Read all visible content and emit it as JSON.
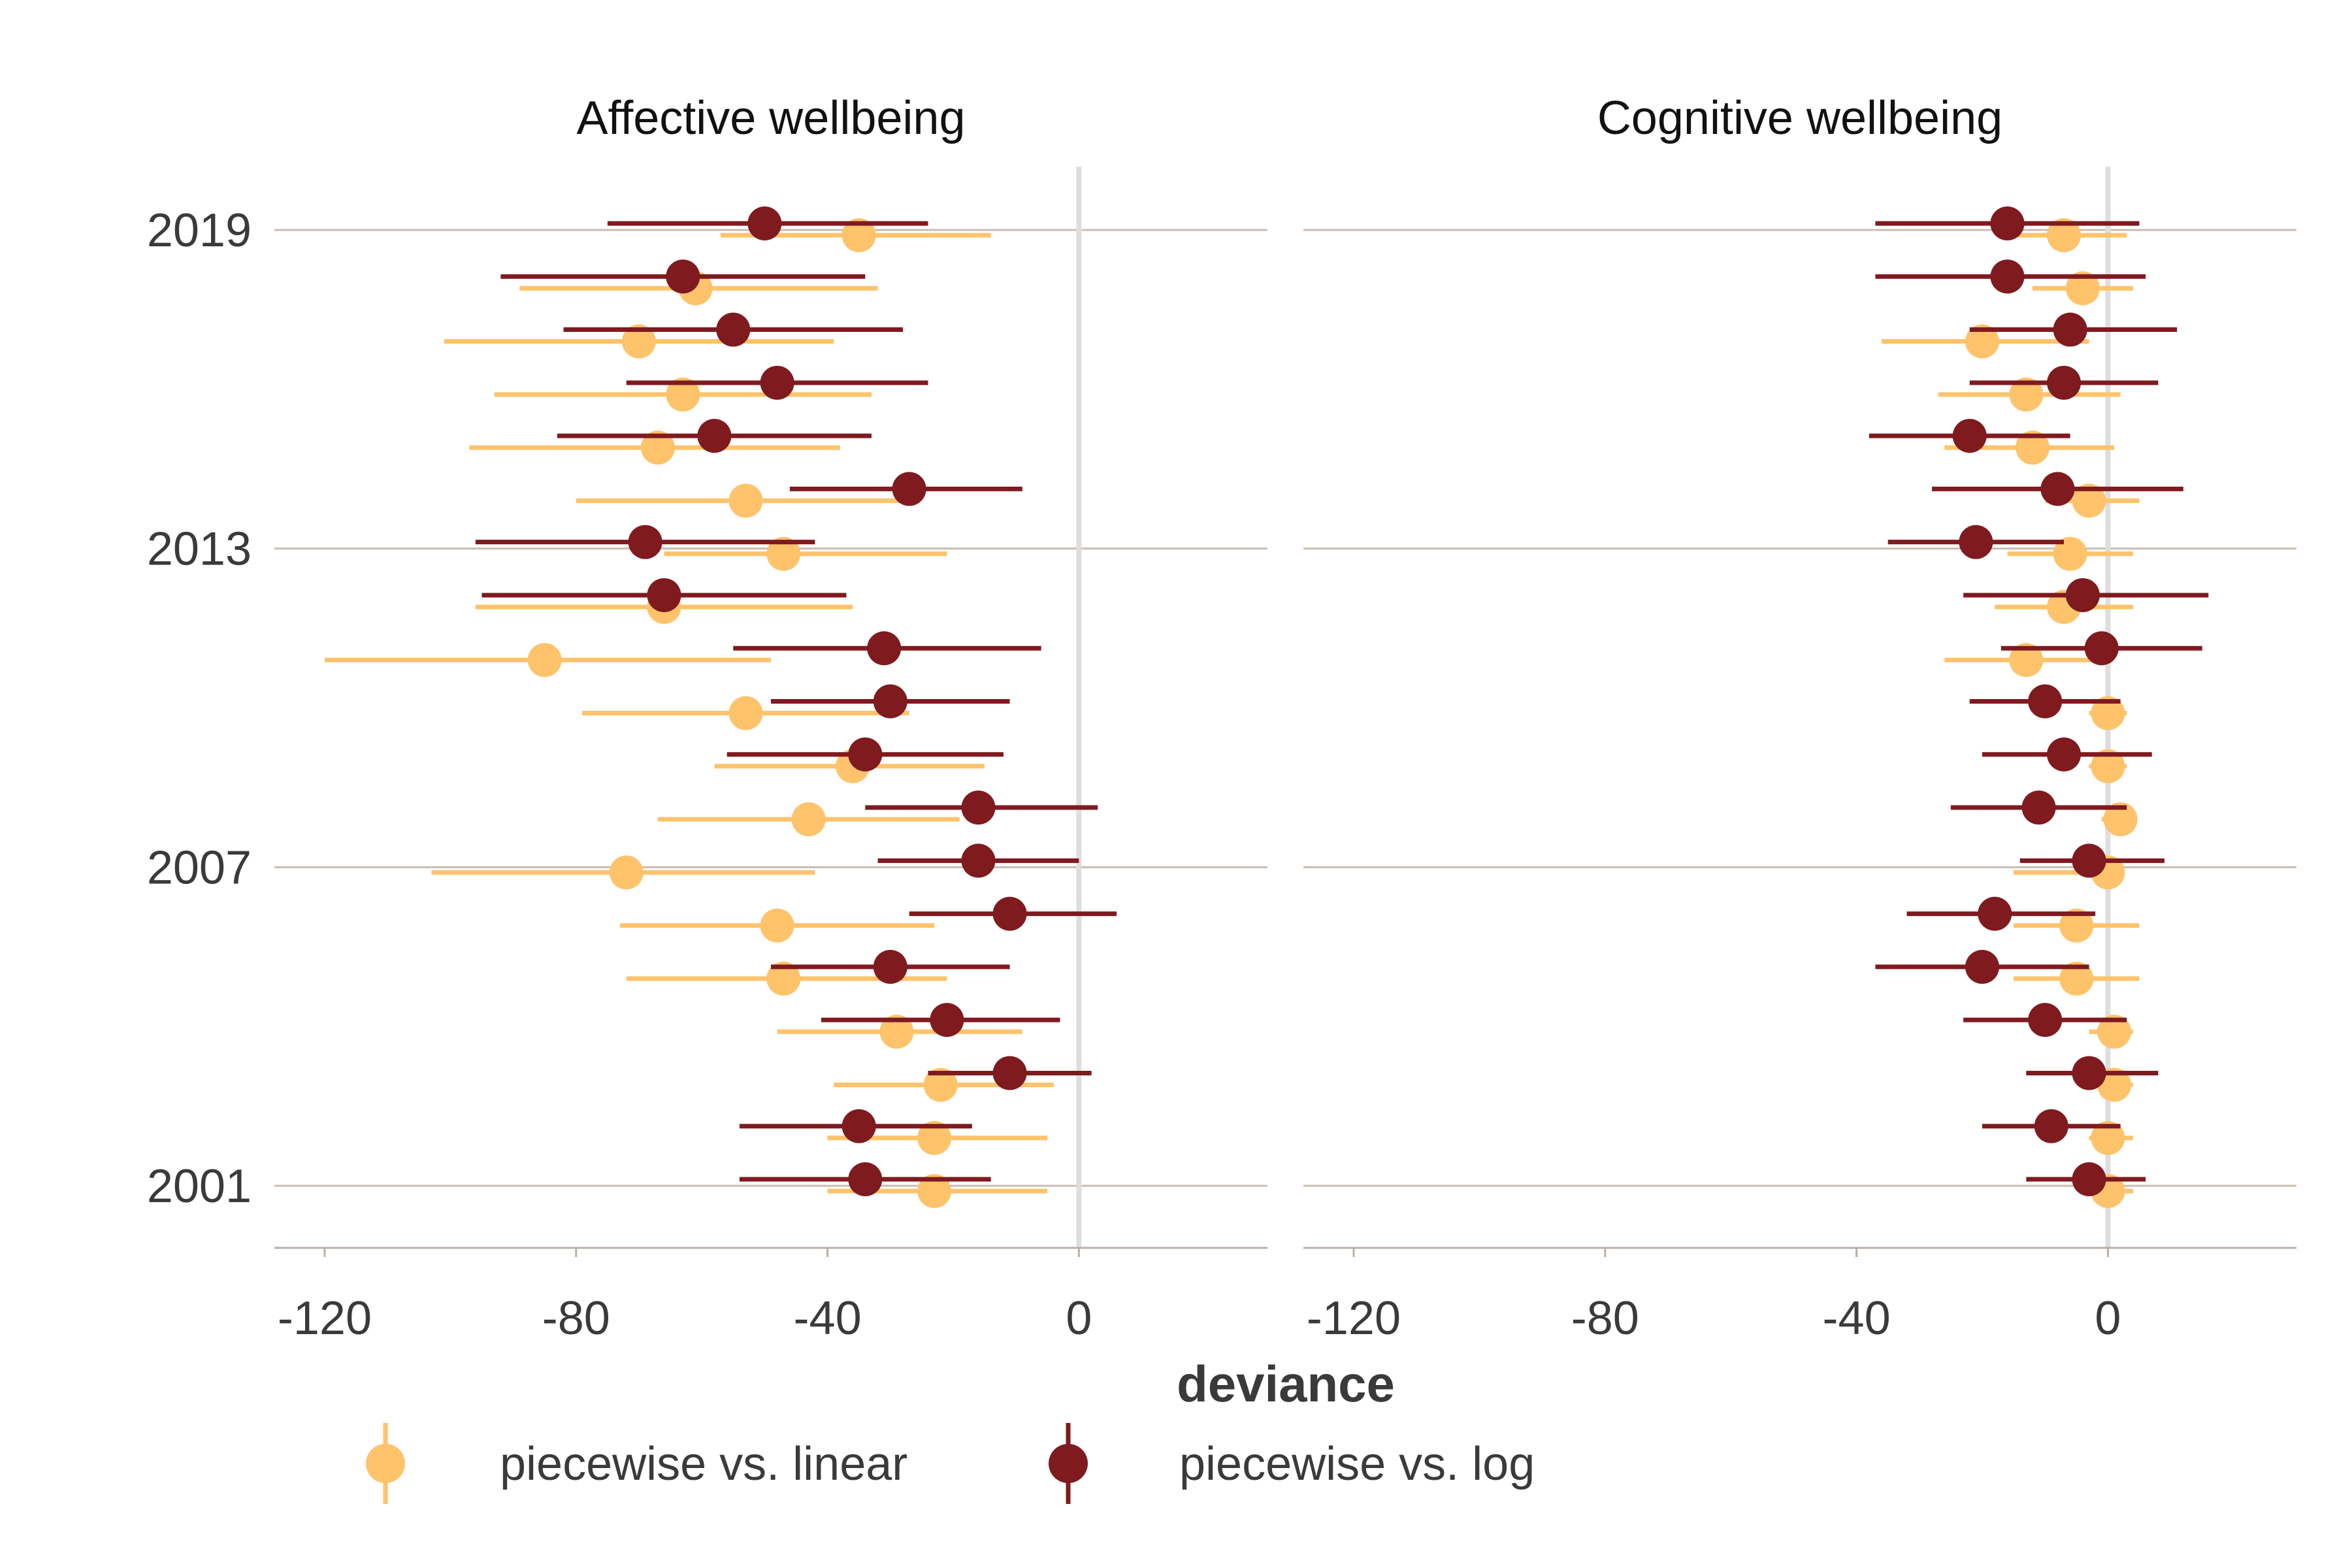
{
  "chart_data": {
    "type": "scatter",
    "subtype": "dot-and-whisker (point estimate with interval), faceted",
    "xlabel": "deviance",
    "ylabel": "",
    "xlim": [
      -128,
      30
    ],
    "x_ticks": [
      -120,
      -80,
      -40,
      0
    ],
    "x_tick_labels": [
      "-120",
      "-80",
      "-40",
      "0"
    ],
    "y_tick_labels": [
      "2019",
      "2013",
      "2007",
      "2001"
    ],
    "y_tick_years": [
      2019,
      2013,
      2007,
      2001
    ],
    "years": [
      2019,
      2018,
      2017,
      2016,
      2015,
      2014,
      2013,
      2012,
      2011,
      2010,
      2009,
      2008,
      2007,
      2006,
      2005,
      2004,
      2003,
      2002,
      2001
    ],
    "reference_line_x": 0,
    "legend": {
      "position": "bottom",
      "entries": [
        {
          "label": "piecewise vs. linear",
          "color": "#FEC36B"
        },
        {
          "label": "piecewise vs. log",
          "color": "#7F1A1F"
        }
      ]
    },
    "colors": {
      "linear": "#FEC36B",
      "log": "#7F1A1F",
      "gridline": "#C9BDB3",
      "refline": "#DEDEDE",
      "axis": "#B8B0A8"
    },
    "panels": [
      {
        "title": "Affective wellbeing",
        "series": [
          {
            "name": "piecewise vs. linear",
            "color": "#FEC36B",
            "estimate": [
              -35,
              -61,
              -70,
              -63,
              -67,
              -53,
              -47,
              -66,
              -85,
              -53,
              -36,
              -43,
              -72,
              -48,
              -47,
              -29,
              -22,
              -23,
              -23
            ],
            "low": [
              -57,
              -89,
              -101,
              -93,
              -97,
              -80,
              -66,
              -96,
              -120,
              -79,
              -58,
              -67,
              -103,
              -73,
              -72,
              -48,
              -39,
              -40,
              -40
            ],
            "high": [
              -14,
              -32,
              -39,
              -33,
              -38,
              -26,
              -21,
              -36,
              -49,
              -27,
              -15,
              -19,
              -42,
              -23,
              -21,
              -9,
              -4,
              -5,
              -5
            ]
          },
          {
            "name": "piecewise vs. log",
            "color": "#7F1A1F",
            "estimate": [
              -50,
              -63,
              -55,
              -48,
              -58,
              -27,
              -69,
              -66,
              -31,
              -30,
              -34,
              -16,
              -16,
              -11,
              -30,
              -21,
              -11,
              -35,
              -34
            ],
            "low": [
              -75,
              -92,
              -82,
              -72,
              -83,
              -46,
              -96,
              -95,
              -55,
              -49,
              -56,
              -34,
              -32,
              -27,
              -49,
              -41,
              -24,
              -54,
              -54
            ],
            "high": [
              -24,
              -34,
              -28,
              -24,
              -33,
              -9,
              -42,
              -37,
              -6,
              -11,
              -12,
              3,
              0,
              6,
              -11,
              -3,
              2,
              -17,
              -14
            ]
          }
        ]
      },
      {
        "title": "Cognitive wellbeing",
        "series": [
          {
            "name": "piecewise vs. linear",
            "color": "#FEC36B",
            "estimate": [
              -7,
              -4,
              -20,
              -13,
              -12,
              -3,
              -6,
              -7,
              -13,
              0,
              0,
              2,
              0,
              -5,
              -5,
              1,
              1,
              0,
              0
            ],
            "low": [
              -16,
              -12,
              -36,
              -27,
              -26,
              -10,
              -16,
              -18,
              -26,
              -3,
              -3,
              -1,
              -15,
              -15,
              -15,
              -3,
              -3,
              -3,
              -3
            ],
            "high": [
              3,
              4,
              -3,
              2,
              1,
              5,
              4,
              4,
              0,
              3,
              3,
              4,
              2,
              5,
              5,
              4,
              4,
              4,
              4
            ]
          },
          {
            "name": "piecewise vs. log",
            "color": "#7F1A1F",
            "estimate": [
              -16,
              -16,
              -6,
              -7,
              -22,
              -8,
              -21,
              -4,
              -1,
              -10,
              -7,
              -11,
              -3,
              -18,
              -20,
              -10,
              -3,
              -9,
              -3
            ],
            "low": [
              -37,
              -37,
              -22,
              -22,
              -38,
              -28,
              -35,
              -23,
              -17,
              -22,
              -20,
              -25,
              -14,
              -32,
              -37,
              -23,
              -13,
              -20,
              -13
            ],
            "high": [
              5,
              6,
              11,
              8,
              -6,
              12,
              -7,
              16,
              15,
              2,
              7,
              3,
              9,
              -2,
              -3,
              3,
              8,
              2,
              6
            ]
          }
        ]
      }
    ]
  }
}
